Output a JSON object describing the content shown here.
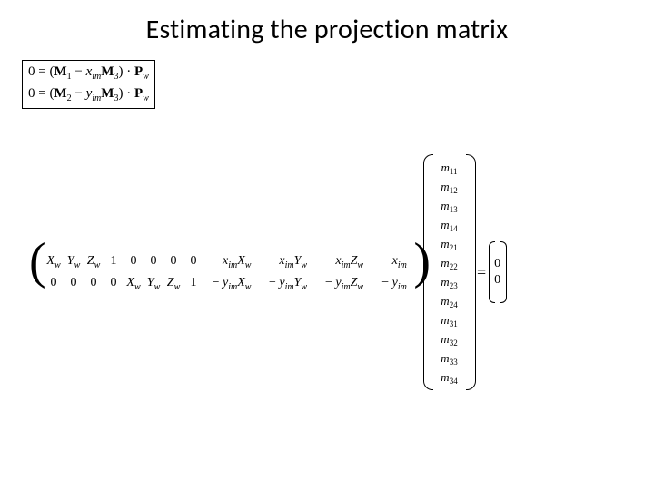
{
  "title": "Estimating the projection matrix",
  "constraint_box": {
    "line1_parts": {
      "zero": "0",
      "eq": " = (",
      "M": "M",
      "one": "1",
      "minus": " − ",
      "x": "x",
      "im": "im",
      "M2": "M",
      "three": "3",
      "close": ") · ",
      "P": "P",
      "w": "w"
    },
    "line2_parts": {
      "zero": "0",
      "eq": " = (",
      "M": "M",
      "two": "2",
      "minus": " − ",
      "y": "y",
      "im": "im",
      "M2": "M",
      "three": "3",
      "close": ") · ",
      "P": "P",
      "w": "w"
    }
  },
  "A_matrix": {
    "row1": [
      "X",
      "Y",
      "Z",
      "1",
      "0",
      "0",
      "0",
      "0"
    ],
    "row1_neg": [
      "− x",
      "X",
      "− x",
      "Y",
      "− x",
      "Z",
      "− x"
    ],
    "row2": [
      "0",
      "0",
      "0",
      "0",
      "X",
      "Y",
      "Z",
      "1"
    ],
    "row2_neg": [
      "− y",
      "X",
      "− y",
      "Y",
      "− y",
      "Z",
      "− y"
    ],
    "sub_w": "w",
    "sub_im": "im"
  },
  "m_vector": [
    "m11",
    "m12",
    "m13",
    "m14",
    "m21",
    "m22",
    "m23",
    "m24",
    "m31",
    "m32",
    "m33",
    "m34"
  ],
  "rhs": [
    "0",
    "0"
  ],
  "equals": "="
}
